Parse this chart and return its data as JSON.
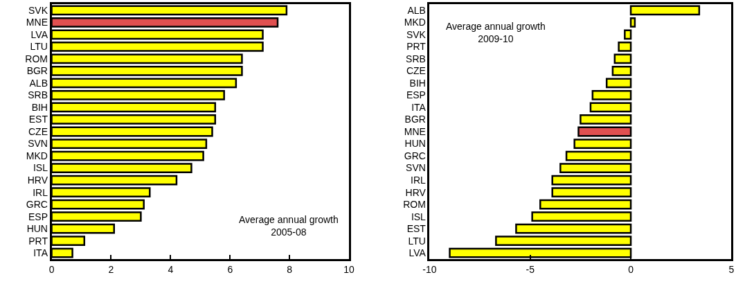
{
  "chart_data": [
    {
      "type": "bar",
      "orientation": "horizontal",
      "categories": [
        "SVK",
        "MNE",
        "LVA",
        "LTU",
        "ROM",
        "BGR",
        "ALB",
        "SRB",
        "BIH",
        "EST",
        "CZE",
        "SVN",
        "MKD",
        "ISL",
        "HRV",
        "IRL",
        "GRC",
        "ESP",
        "HUN",
        "PRT",
        "ITA"
      ],
      "values": [
        7.9,
        7.6,
        7.1,
        7.1,
        6.4,
        6.4,
        6.2,
        5.8,
        5.5,
        5.5,
        5.4,
        5.2,
        5.1,
        4.7,
        4.2,
        3.3,
        3.1,
        3.0,
        2.1,
        1.1,
        0.7
      ],
      "colors": [
        "#ffff00",
        "#e05050",
        "#ffff00",
        "#ffff00",
        "#ffff00",
        "#ffff00",
        "#ffff00",
        "#ffff00",
        "#ffff00",
        "#ffff00",
        "#ffff00",
        "#ffff00",
        "#ffff00",
        "#ffff00",
        "#ffff00",
        "#ffff00",
        "#ffff00",
        "#ffff00",
        "#ffff00",
        "#ffff00",
        "#ffff00"
      ],
      "xlim": [
        0,
        10
      ],
      "xticks": [
        0,
        2,
        4,
        6,
        8,
        10
      ],
      "grid": false,
      "legend": false,
      "annotations": [
        "Average annual growth\n2005-08"
      ]
    },
    {
      "type": "bar",
      "orientation": "horizontal",
      "categories": [
        "ALB",
        "MKD",
        "SVK",
        "PRT",
        "SRB",
        "CZE",
        "BIH",
        "ESP",
        "ITA",
        "BGR",
        "MNE",
        "HUN",
        "GRC",
        "SVN",
        "IRL",
        "HRV",
        "ROM",
        "ISL",
        "EST",
        "LTU",
        "LVA"
      ],
      "values": [
        3.4,
        0.2,
        -0.3,
        -0.6,
        -0.8,
        -0.9,
        -1.2,
        -1.9,
        -2.0,
        -2.5,
        -2.6,
        -2.8,
        -3.2,
        -3.5,
        -3.9,
        -3.9,
        -4.5,
        -4.9,
        -5.7,
        -6.7,
        -9.0
      ],
      "colors": [
        "#ffff00",
        "#ffff00",
        "#ffff00",
        "#ffff00",
        "#ffff00",
        "#ffff00",
        "#ffff00",
        "#ffff00",
        "#ffff00",
        "#ffff00",
        "#e05050",
        "#ffff00",
        "#ffff00",
        "#ffff00",
        "#ffff00",
        "#ffff00",
        "#ffff00",
        "#ffff00",
        "#ffff00",
        "#ffff00",
        "#ffff00"
      ],
      "xlim": [
        -10,
        5
      ],
      "xticks": [
        -10,
        -5,
        0,
        5
      ],
      "grid": false,
      "legend": false,
      "annotations": [
        "Average annual growth\n2009-10"
      ]
    }
  ]
}
